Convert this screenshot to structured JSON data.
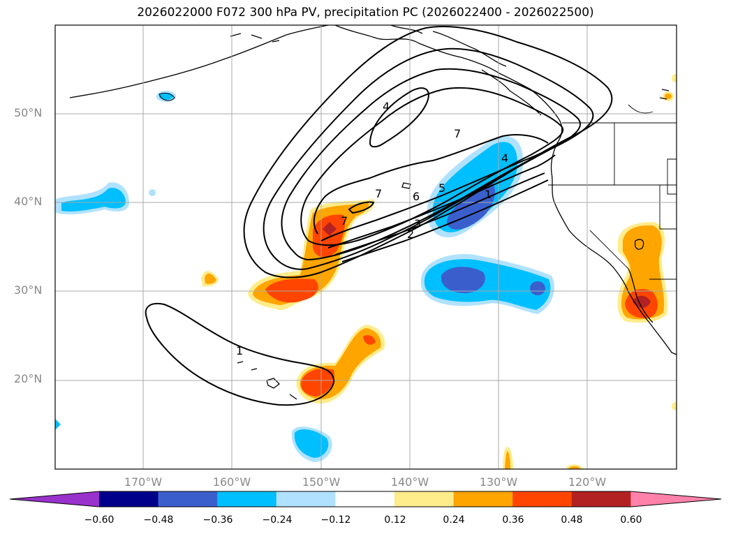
{
  "title": "2026022000 F072 300 hPa PV, precipitation PC (2026022400 - 2026022500)",
  "lat_labels": [
    "50°N",
    "40°N",
    "30°N",
    "20°N"
  ],
  "lon_labels": [
    "170°W",
    "160°W",
    "150°W",
    "140°W",
    "130°W",
    "120°W"
  ],
  "contour_labels": [
    "4",
    "7",
    "4",
    "7",
    "6",
    "5",
    "7",
    "3",
    "2",
    "1",
    "1"
  ],
  "colorbar": {
    "ticks": [
      "−0.60",
      "−0.48",
      "−0.36",
      "−0.24",
      "−0.12",
      "0.12",
      "0.24",
      "0.36",
      "0.48",
      "0.60"
    ],
    "colors": [
      "#9932CC",
      "#00008B",
      "#3A5FCD",
      "#00BFFF",
      "#B0E2FF",
      "#FFFFFF",
      "#FFEC8B",
      "#FFA500",
      "#FF4500",
      "#B22222",
      "#FF82AB"
    ]
  }
}
